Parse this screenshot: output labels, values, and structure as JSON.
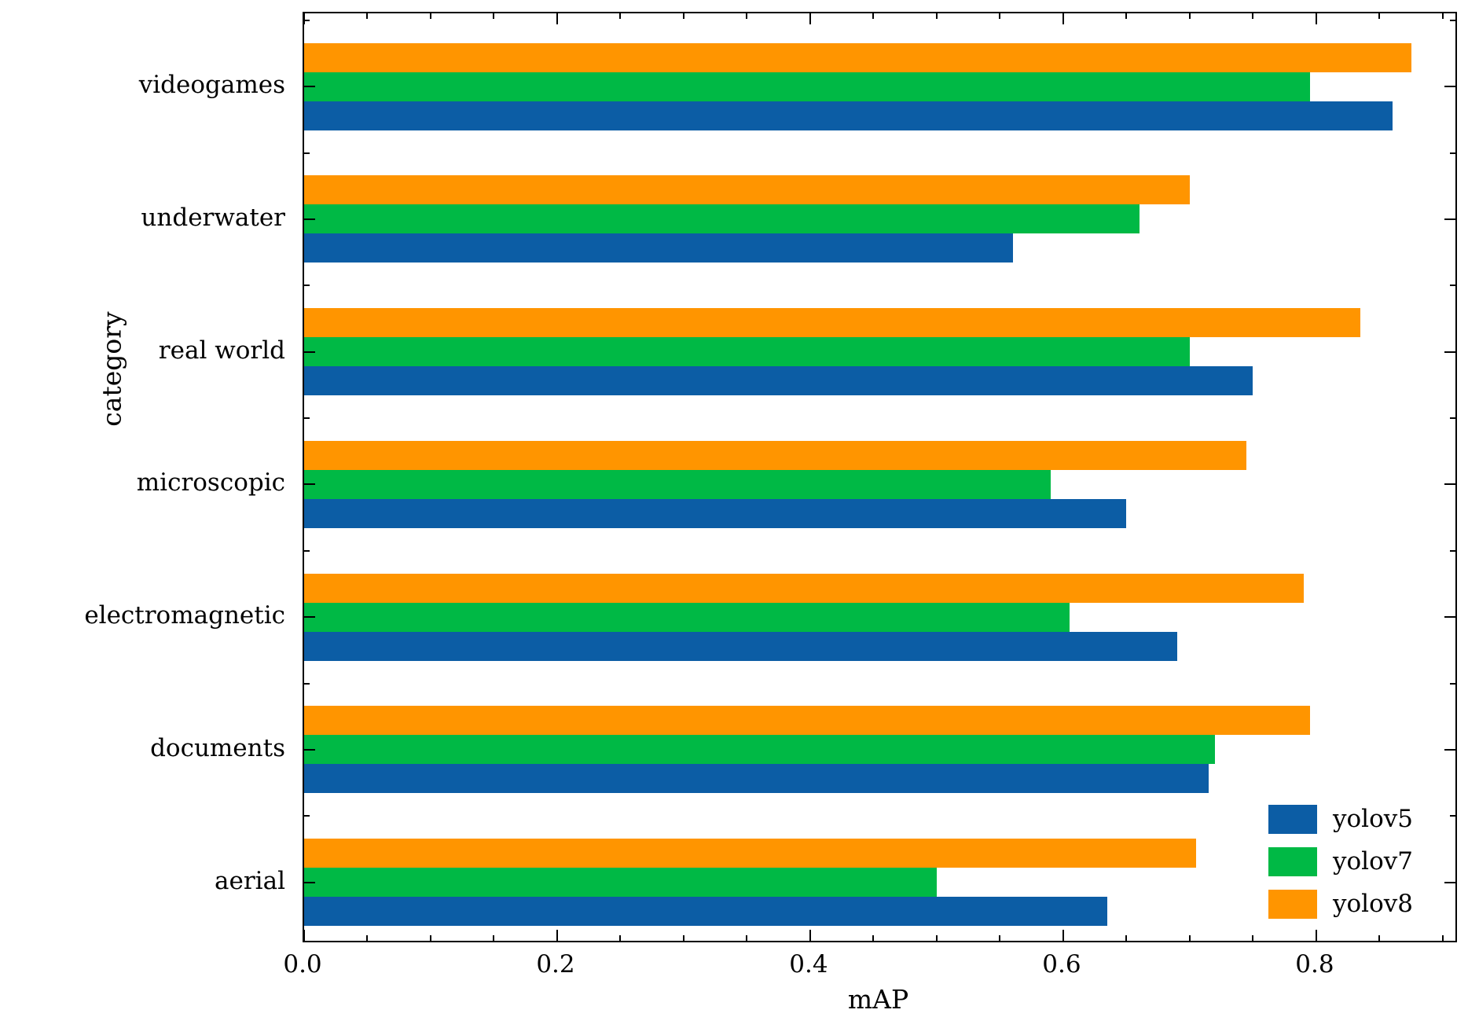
{
  "chart_data": {
    "type": "bar",
    "orientation": "horizontal",
    "title": "",
    "xlabel": "mAP",
    "ylabel": "category",
    "xlim": [
      0,
      0.91
    ],
    "x_major_ticks": [
      0.0,
      0.2,
      0.4,
      0.6,
      0.8
    ],
    "x_tick_labels": [
      "0.0",
      "0.2",
      "0.4",
      "0.6",
      "0.8"
    ],
    "x_minor_tick_interval": 0.05,
    "grid": false,
    "categories_top_to_bottom": [
      "videogames",
      "underwater",
      "real world",
      "microscopic",
      "electromagnetic",
      "documents",
      "aerial"
    ],
    "series": [
      {
        "name": "yolov5",
        "color": "#0C5DA5",
        "values": [
          0.86,
          0.56,
          0.75,
          0.65,
          0.69,
          0.715,
          0.635
        ]
      },
      {
        "name": "yolov7",
        "color": "#00B945",
        "values": [
          0.795,
          0.66,
          0.7,
          0.59,
          0.605,
          0.72,
          0.5
        ]
      },
      {
        "name": "yolov8",
        "color": "#FF9500",
        "values": [
          0.875,
          0.7,
          0.835,
          0.745,
          0.79,
          0.795,
          0.705
        ]
      }
    ],
    "bar_order_within_group_top_to_bottom": [
      "yolov8",
      "yolov7",
      "yolov5"
    ],
    "legend": {
      "position": "lower right",
      "entries": [
        "yolov5",
        "yolov7",
        "yolov8"
      ]
    }
  }
}
